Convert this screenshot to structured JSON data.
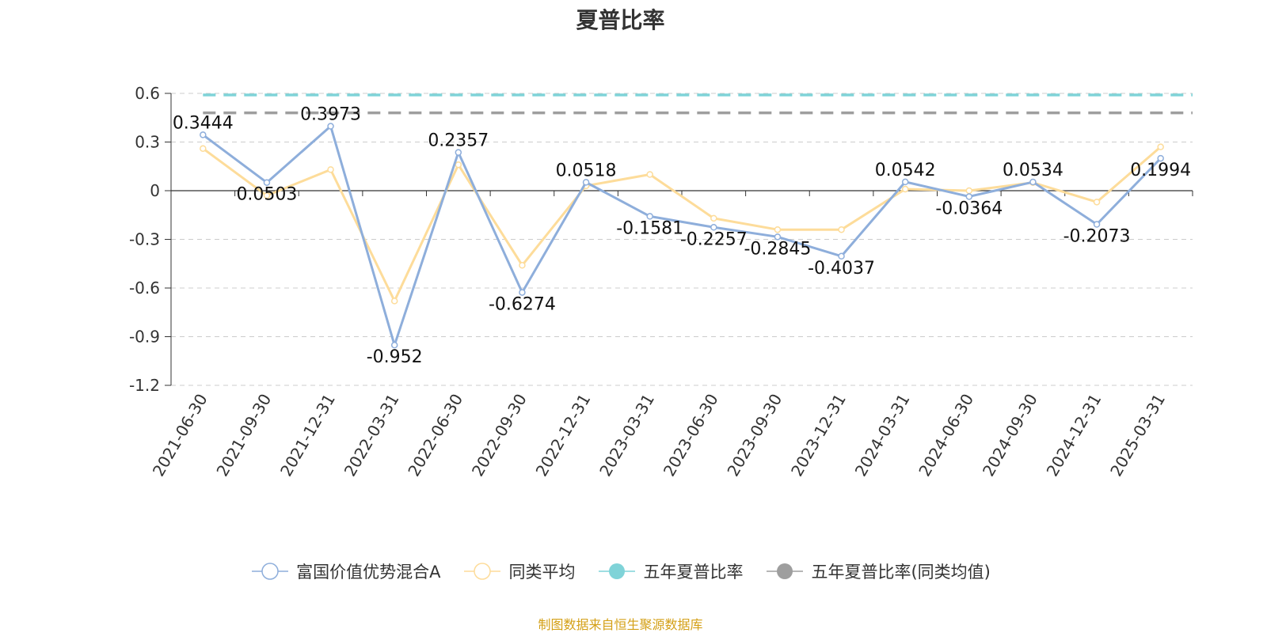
{
  "title": "夏普比率",
  "source_note": "制图数据来自恒生聚源数据库",
  "colors": {
    "fund": "#8eaedb",
    "peer": "#fddc9a",
    "five_year": "#7fd3d8",
    "five_year_peer": "#9e9e9e",
    "axis": "#333333",
    "grid": "#cccccc",
    "label": "#111111"
  },
  "chart_data": {
    "type": "line",
    "x": [
      "2021-06-30",
      "2021-09-30",
      "2021-12-31",
      "2022-03-31",
      "2022-06-30",
      "2022-09-30",
      "2022-12-31",
      "2023-03-31",
      "2023-06-30",
      "2023-09-30",
      "2023-12-31",
      "2024-03-31",
      "2024-06-30",
      "2024-09-30",
      "2024-12-31",
      "2025-03-31"
    ],
    "y_ticks": [
      "0.6",
      "0.3",
      "0",
      "-0.3",
      "-0.6",
      "-0.9",
      "-1.2"
    ],
    "ylim": [
      -1.2,
      0.6
    ],
    "grid": true,
    "legend_position": "bottom",
    "series": [
      {
        "name": "富国价值优势混合A",
        "values": [
          0.3444,
          0.0503,
          0.3973,
          -0.952,
          0.2357,
          -0.6274,
          0.0518,
          -0.1581,
          -0.2257,
          -0.2845,
          -0.4037,
          0.0542,
          -0.0364,
          0.0534,
          -0.2073,
          0.1994
        ],
        "labels": [
          "0.3444",
          "0.0503",
          "0.3973",
          "-0.952",
          "0.2357",
          "-0.6274",
          "0.0518",
          "-0.1581",
          "-0.2257",
          "-0.2845",
          "-0.4037",
          "0.0542",
          "-0.0364",
          "0.0534",
          "-0.2073",
          "0.1994"
        ]
      },
      {
        "name": "同类平均",
        "values": [
          0.26,
          -0.03,
          0.13,
          -0.68,
          0.16,
          -0.46,
          0.03,
          0.1,
          -0.17,
          -0.24,
          -0.24,
          0.01,
          0.0,
          0.05,
          -0.07,
          0.27
        ]
      },
      {
        "name": "五年夏普比率",
        "constant": 0.59
      },
      {
        "name": "五年夏普比率(同类均值)",
        "constant": 0.48
      }
    ]
  }
}
